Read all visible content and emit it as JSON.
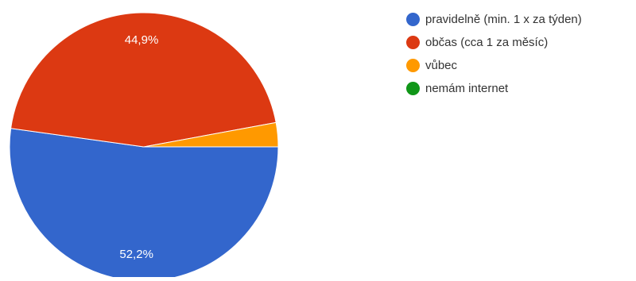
{
  "chart_data": {
    "type": "pie",
    "title": "",
    "categories": [
      "pravidelně (min. 1 x za týden)",
      "občas (cca 1 za měsíc)",
      "vůbec",
      "nemám internet"
    ],
    "values": [
      52.2,
      44.9,
      2.9,
      0
    ],
    "data_labels": [
      "52,2%",
      "44,9%",
      "",
      ""
    ],
    "colors": [
      "#3366cc",
      "#dc3912",
      "#ff9900",
      "#109618"
    ],
    "legend_position": "right"
  }
}
